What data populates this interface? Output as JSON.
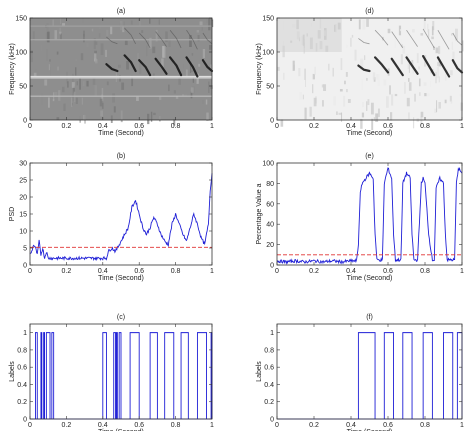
{
  "chart_data": [
    {
      "type": "heatmap",
      "panel": "a",
      "title": "(a)",
      "xlabel": "Time (Second)",
      "ylabel": "Frequency (kHz)",
      "xlim": [
        0,
        1
      ],
      "ylim": [
        0,
        150
      ],
      "xticks": [
        0,
        0.2,
        0.4,
        0.6,
        0.8,
        1
      ],
      "xticklabels": [
        "0",
        "0.2",
        "0.4",
        "0.6",
        "0.8",
        "1"
      ],
      "yticks": [
        0,
        50,
        100,
        150
      ],
      "yticklabels": [
        "0",
        "50",
        "100",
        "150"
      ],
      "colormap": "grayscale",
      "background_color": "#8e8e8e",
      "calls": [
        {
          "t": [
            0.42,
            0.45,
            0.48
          ],
          "f": [
            82,
            75,
            72
          ]
        },
        {
          "t": [
            0.52,
            0.555,
            0.58
          ],
          "f": [
            95,
            85,
            72
          ]
        },
        {
          "t": [
            0.6,
            0.635,
            0.66
          ],
          "f": [
            88,
            78,
            66
          ]
        },
        {
          "t": [
            0.69,
            0.725,
            0.75
          ],
          "f": [
            90,
            78,
            68
          ]
        },
        {
          "t": [
            0.77,
            0.805,
            0.83
          ],
          "f": [
            92,
            80,
            66
          ]
        },
        {
          "t": [
            0.86,
            0.895,
            0.92
          ],
          "f": [
            92,
            78,
            64
          ]
        },
        {
          "t": [
            0.95,
            0.975,
            1.0
          ],
          "f": [
            88,
            78,
            72
          ]
        }
      ]
    },
    {
      "type": "heatmap",
      "panel": "d",
      "title": "(d)",
      "xlabel": "Time (Second)",
      "ylabel": "Frequency (kHz)",
      "xlim": [
        0,
        1
      ],
      "ylim": [
        0,
        150
      ],
      "xticks": [
        0,
        0.2,
        0.4,
        0.6,
        0.8,
        1
      ],
      "xticklabels": [
        "0",
        "0.2",
        "0.4",
        "0.6",
        "0.8",
        "1"
      ],
      "yticks": [
        0,
        50,
        100,
        150
      ],
      "yticklabels": [
        "0",
        "50",
        "100",
        "150"
      ],
      "colormap": "grayscale",
      "background_color": "#f0f0f0",
      "calls": [
        {
          "t": [
            0.44,
            0.47,
            0.5
          ],
          "f": [
            80,
            74,
            72
          ]
        },
        {
          "t": [
            0.53,
            0.565,
            0.6
          ],
          "f": [
            92,
            82,
            70
          ]
        },
        {
          "t": [
            0.62,
            0.65,
            0.68
          ],
          "f": [
            90,
            78,
            66
          ]
        },
        {
          "t": [
            0.7,
            0.735,
            0.76
          ],
          "f": [
            92,
            78,
            68
          ]
        },
        {
          "t": [
            0.79,
            0.82,
            0.85
          ],
          "f": [
            94,
            80,
            66
          ]
        },
        {
          "t": [
            0.87,
            0.9,
            0.93
          ],
          "f": [
            92,
            78,
            64
          ]
        },
        {
          "t": [
            0.95,
            0.975,
            1.0
          ],
          "f": [
            88,
            76,
            70
          ]
        }
      ]
    },
    {
      "type": "line",
      "panel": "b",
      "title": "(b)",
      "xlabel": "Time (Second)",
      "ylabel": "PSD",
      "xlim": [
        0,
        1
      ],
      "ylim": [
        0,
        30
      ],
      "xticks": [
        0,
        0.2,
        0.4,
        0.6,
        0.8,
        1
      ],
      "xticklabels": [
        "0",
        "0.2",
        "0.4",
        "0.6",
        "0.8",
        "1"
      ],
      "yticks": [
        0,
        5,
        10,
        15,
        20,
        25,
        30
      ],
      "yticklabels": [
        "0",
        "5",
        "10",
        "15",
        "20",
        "25",
        "30"
      ],
      "threshold": 5.2,
      "line_color": "#1f1fd6",
      "threshold_color": "#e03030",
      "x": [
        0,
        0.01,
        0.02,
        0.03,
        0.04,
        0.05,
        0.06,
        0.07,
        0.08,
        0.09,
        0.1,
        0.12,
        0.15,
        0.2,
        0.25,
        0.3,
        0.35,
        0.4,
        0.42,
        0.43,
        0.45,
        0.47,
        0.5,
        0.52,
        0.54,
        0.56,
        0.58,
        0.6,
        0.62,
        0.64,
        0.66,
        0.68,
        0.7,
        0.72,
        0.74,
        0.76,
        0.78,
        0.8,
        0.82,
        0.84,
        0.86,
        0.88,
        0.9,
        0.92,
        0.94,
        0.96,
        0.98,
        0.99,
        1.0
      ],
      "y": [
        3,
        4,
        6,
        5,
        3,
        7,
        3,
        5,
        2,
        4,
        2,
        2,
        2,
        2,
        2,
        2,
        2,
        2,
        2,
        4,
        5,
        4,
        7,
        9,
        11,
        17,
        19,
        15,
        11,
        9,
        11,
        14,
        12,
        9,
        7,
        6,
        12,
        15,
        12,
        9,
        7,
        11,
        15,
        12,
        8,
        6,
        12,
        22,
        27
      ]
    },
    {
      "type": "line",
      "panel": "e",
      "title": "(e)",
      "xlabel": "Time (Second)",
      "ylabel": "Percentage Value a",
      "xlim": [
        0,
        1
      ],
      "ylim": [
        0,
        100
      ],
      "xticks": [
        0,
        0.2,
        0.4,
        0.6,
        0.8,
        1
      ],
      "xticklabels": [
        "0",
        "0.2",
        "0.4",
        "0.6",
        "0.8",
        "1"
      ],
      "yticks": [
        0,
        20,
        40,
        60,
        80,
        100
      ],
      "yticklabels": [
        "0",
        "20",
        "40",
        "60",
        "80",
        "100"
      ],
      "threshold": 10,
      "line_color": "#1f1fd6",
      "threshold_color": "#e03030",
      "x": [
        0,
        0.05,
        0.1,
        0.15,
        0.2,
        0.25,
        0.3,
        0.35,
        0.4,
        0.43,
        0.44,
        0.45,
        0.46,
        0.48,
        0.5,
        0.52,
        0.53,
        0.54,
        0.57,
        0.58,
        0.6,
        0.62,
        0.63,
        0.64,
        0.67,
        0.68,
        0.7,
        0.72,
        0.73,
        0.74,
        0.76,
        0.78,
        0.79,
        0.8,
        0.82,
        0.84,
        0.85,
        0.86,
        0.88,
        0.9,
        0.91,
        0.92,
        0.94,
        0.96,
        0.97,
        0.98,
        1.0
      ],
      "y": [
        4,
        3,
        4,
        3,
        4,
        3,
        4,
        3,
        4,
        4,
        20,
        70,
        80,
        85,
        90,
        85,
        30,
        5,
        5,
        80,
        95,
        85,
        30,
        5,
        5,
        80,
        90,
        85,
        30,
        5,
        5,
        80,
        85,
        80,
        30,
        5,
        5,
        75,
        85,
        80,
        30,
        5,
        5,
        5,
        80,
        95,
        90
      ]
    },
    {
      "type": "bar",
      "subtype": "binary",
      "panel": "c",
      "title": "(c)",
      "xlabel": "Time (Second)",
      "ylabel": "Labels",
      "xlim": [
        0,
        1
      ],
      "ylim": [
        0,
        1.1
      ],
      "xticks": [
        0,
        0.2,
        0.4,
        0.6,
        0.8,
        1
      ],
      "xticklabels": [
        "0",
        "0.2",
        "0.4",
        "0.6",
        "0.8",
        "1"
      ],
      "yticks": [
        0,
        0.2,
        0.4,
        0.6,
        0.8,
        1
      ],
      "yticklabels": [
        "0",
        "0.2",
        "0.4",
        "0.6",
        "0.8",
        "1"
      ],
      "value": 1,
      "line_color": "#1f1fd6",
      "intervals": [
        [
          0.03,
          0.04
        ],
        [
          0.06,
          0.065
        ],
        [
          0.075,
          0.08
        ],
        [
          0.09,
          0.11
        ],
        [
          0.12,
          0.13
        ],
        [
          0.4,
          0.42
        ],
        [
          0.46,
          0.47
        ],
        [
          0.475,
          0.48
        ],
        [
          0.49,
          0.5
        ],
        [
          0.55,
          0.6
        ],
        [
          0.66,
          0.7
        ],
        [
          0.74,
          0.79
        ],
        [
          0.83,
          0.87
        ],
        [
          0.92,
          0.97
        ],
        [
          0.995,
          1.0
        ]
      ]
    },
    {
      "type": "bar",
      "subtype": "binary",
      "panel": "f",
      "title": "(f)",
      "xlabel": "Time (Second)",
      "ylabel": "Labels",
      "xlim": [
        0,
        1
      ],
      "ylim": [
        0,
        1.1
      ],
      "xticks": [
        0,
        0.2,
        0.4,
        0.6,
        0.8,
        1
      ],
      "xticklabels": [
        "0",
        "0.2",
        "0.4",
        "0.6",
        "0.8",
        "1"
      ],
      "yticks": [
        0,
        0.2,
        0.4,
        0.6,
        0.8,
        1
      ],
      "yticklabels": [
        "0",
        "0.2",
        "0.4",
        "0.6",
        "0.8",
        "1"
      ],
      "value": 1,
      "line_color": "#1f1fd6",
      "intervals": [
        [
          0.44,
          0.53
        ],
        [
          0.58,
          0.63
        ],
        [
          0.68,
          0.73
        ],
        [
          0.79,
          0.84
        ],
        [
          0.9,
          0.95
        ],
        [
          0.975,
          1.0
        ]
      ]
    }
  ]
}
